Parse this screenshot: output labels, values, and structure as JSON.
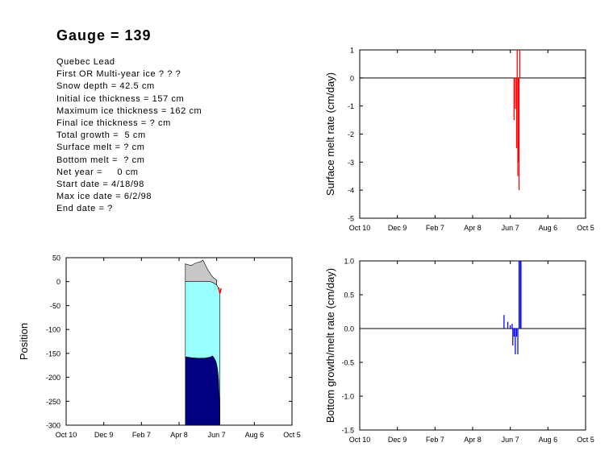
{
  "header": {
    "title": "Gauge = 139",
    "info_lines": [
      "Quebec Lead",
      "First OR Multi-year ice ? ? ?",
      "Snow depth = 42.5 cm",
      "Initial ice thickness = 157 cm",
      "Maximum ice thickness = 162 cm",
      "Final ice thickness = ? cm",
      "Total growth =  5 cm",
      "Surface melt = ? cm",
      "Bottom melt =  ? cm",
      "Net year =     0 cm",
      "Start date = 4/18/98",
      "Max ice date = 6/2/98",
      "End date = ?"
    ]
  },
  "colors": {
    "snow": "#c8c8c8",
    "ice": "#99ffff",
    "water": "#000080",
    "surface_melt": "#ff0000",
    "bottom_melt": "#0000ff"
  },
  "chart_data": [
    {
      "id": "surface",
      "type": "bar",
      "xlabel": "",
      "ylabel": "Surface melt rate (cm/day)",
      "x_tick_labels": [
        "Oct 10",
        "Dec 9",
        "Feb 7",
        "Apr 8",
        "Jun 7",
        "Aug 6",
        "Oct 5"
      ],
      "xlim": [
        0,
        360
      ],
      "ylim": [
        -5,
        1
      ],
      "y_tick_values": [
        1,
        0,
        -1,
        -2,
        -3,
        -4,
        -5
      ],
      "y_tick_labels": [
        "1",
        "0",
        "-1",
        "-2",
        "-3",
        "-4",
        "-5"
      ],
      "zero_line": true,
      "bars": [
        {
          "day": 246,
          "value": -1.5
        },
        {
          "day": 248,
          "value": -1.1
        },
        {
          "day": 250,
          "value": -2.5
        },
        {
          "day": 251,
          "value": 1.0
        },
        {
          "day": 252,
          "value": -3.5
        },
        {
          "day": 253,
          "value": -3.0
        },
        {
          "day": 254,
          "value": -4.0
        },
        {
          "day": 255,
          "value": 1.0
        }
      ]
    },
    {
      "id": "bottom",
      "type": "bar",
      "xlabel": "",
      "ylabel": "Bottom growth/melt rate (cm/day)",
      "x_tick_labels": [
        "Oct 10",
        "Dec 9",
        "Feb 7",
        "Apr 8",
        "Jun 7",
        "Aug 6",
        "Oct 5"
      ],
      "xlim": [
        0,
        360
      ],
      "ylim": [
        -1.5,
        1.0
      ],
      "y_tick_values": [
        1.0,
        0.5,
        0.0,
        -0.5,
        -1.0,
        -1.5
      ],
      "y_tick_labels": [
        "1.0",
        "0.5",
        "0.0",
        "-0.5",
        "-1.0",
        "-1.5"
      ],
      "zero_line": true,
      "bars": [
        {
          "day": 230,
          "value": 0.2
        },
        {
          "day": 236,
          "value": 0.1
        },
        {
          "day": 240,
          "value": 0.05
        },
        {
          "day": 243,
          "value": 0.07
        },
        {
          "day": 244,
          "value": -0.25
        },
        {
          "day": 246,
          "value": -0.12
        },
        {
          "day": 248,
          "value": -0.38
        },
        {
          "day": 250,
          "value": -0.12
        },
        {
          "day": 252,
          "value": -0.38
        },
        {
          "day": 254,
          "value": 1.0
        },
        {
          "day": 256,
          "value": 1.0
        },
        {
          "day": 257,
          "value": 1.0
        }
      ]
    },
    {
      "id": "position",
      "type": "area",
      "xlabel": "",
      "ylabel": "Position",
      "x_tick_labels": [
        "Oct 10",
        "Dec 9",
        "Feb 7",
        "Apr 8",
        "Jun 7",
        "Aug 6",
        "Oct 5"
      ],
      "xlim": [
        0,
        360
      ],
      "ylim": [
        -300,
        50
      ],
      "y_tick_values": [
        50,
        0,
        -50,
        -100,
        -150,
        -200,
        -250,
        -300
      ],
      "y_tick_labels": [
        "50",
        "0",
        "-50",
        "-100",
        "-150",
        "-200",
        "-250",
        "-300"
      ],
      "snow_surface": [
        [
          190,
          37
        ],
        [
          195,
          35
        ],
        [
          200,
          34
        ],
        [
          205,
          38
        ],
        [
          210,
          40
        ],
        [
          215,
          42
        ],
        [
          218,
          45
        ],
        [
          220,
          40
        ],
        [
          223,
          32
        ],
        [
          227,
          22
        ],
        [
          231,
          14
        ],
        [
          235,
          8
        ],
        [
          238,
          5
        ],
        [
          240,
          3
        ]
      ],
      "ice_surface": [
        [
          190,
          0
        ],
        [
          230,
          0
        ],
        [
          234,
          -2
        ],
        [
          238,
          -5
        ],
        [
          240,
          -7
        ],
        [
          242,
          -12
        ],
        [
          244,
          -20
        ],
        [
          245,
          -25
        ]
      ],
      "ice_bottom": [
        [
          190,
          -157
        ],
        [
          200,
          -159
        ],
        [
          210,
          -160
        ],
        [
          220,
          -160
        ],
        [
          225,
          -159
        ],
        [
          230,
          -158
        ],
        [
          233,
          -155
        ],
        [
          235,
          -158
        ],
        [
          237,
          -162
        ],
        [
          239,
          -168
        ],
        [
          241,
          -180
        ],
        [
          242,
          -190
        ],
        [
          243,
          -205
        ],
        [
          244,
          -240
        ],
        [
          245,
          -262
        ],
        [
          245,
          -300
        ]
      ],
      "melt_marker": [
        [
          243,
          -12
        ],
        [
          244,
          -18
        ],
        [
          245,
          -25
        ],
        [
          246,
          -21
        ],
        [
          247,
          -14
        ]
      ]
    }
  ]
}
